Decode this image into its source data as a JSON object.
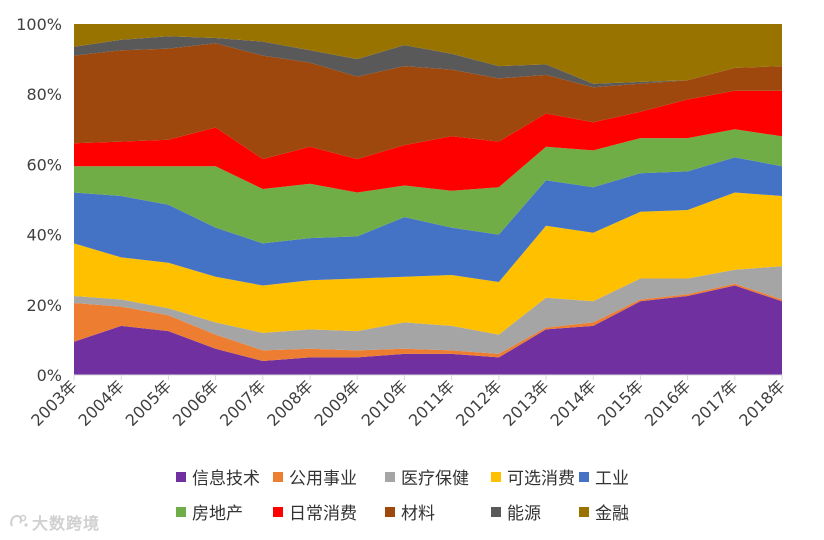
{
  "chart_data": {
    "type": "area",
    "stacked": true,
    "percent": true,
    "categories": [
      "2003年",
      "2004年",
      "2005年",
      "2006年",
      "2007年",
      "2008年",
      "2009年",
      "2010年",
      "2011年",
      "2012年",
      "2013年",
      "2014年",
      "2015年",
      "2016年",
      "2017年",
      "2018年"
    ],
    "series": [
      {
        "name": "信息技术",
        "color": "#7030a0",
        "values": [
          9.5,
          14,
          12.5,
          7.5,
          4,
          5,
          5,
          6,
          6,
          5,
          13,
          14,
          21,
          22.5,
          25.5,
          21
        ]
      },
      {
        "name": "公用事业",
        "color": "#ed7d31",
        "values": [
          11,
          5.5,
          4.5,
          4,
          3,
          2.5,
          2,
          1.5,
          1,
          1,
          0.5,
          1,
          0.5,
          0.5,
          0.5,
          0.5
        ]
      },
      {
        "name": "医疗保健",
        "color": "#a5a5a5",
        "values": [
          2,
          2,
          2,
          3.5,
          5,
          5.5,
          5.5,
          7.5,
          7,
          5.5,
          8.5,
          6,
          6,
          4.5,
          4,
          9.5
        ]
      },
      {
        "name": "可选消费",
        "color": "#ffc000",
        "values": [
          15,
          12,
          13,
          13,
          13.5,
          14,
          15,
          13,
          14.5,
          15,
          20.5,
          19.5,
          19,
          19.5,
          22,
          20
        ]
      },
      {
        "name": "工业",
        "color": "#4472c4",
        "values": [
          14.5,
          17.5,
          16.5,
          14,
          12,
          12,
          12,
          17,
          13.5,
          13.5,
          13,
          13,
          11,
          11,
          10,
          8.5
        ]
      },
      {
        "name": "房地产",
        "color": "#70ad47",
        "values": [
          7.5,
          8.5,
          11,
          17.5,
          15.5,
          15.5,
          12.5,
          9,
          10.5,
          13.5,
          9.5,
          10.5,
          10,
          9.5,
          8,
          8.5
        ]
      },
      {
        "name": "日常消费",
        "color": "#ff0000",
        "values": [
          6.5,
          7,
          7.5,
          11,
          8.5,
          10.5,
          9.5,
          11.5,
          15.5,
          13,
          9.5,
          8,
          7.5,
          11,
          11,
          13
        ]
      },
      {
        "name": "材料",
        "color": "#9e480e",
        "values": [
          25,
          26,
          26,
          24,
          29.5,
          24,
          23.5,
          22.5,
          19,
          18,
          11,
          10,
          8,
          5.5,
          6.5,
          7
        ]
      },
      {
        "name": "能源",
        "color": "#595959",
        "values": [
          2.5,
          3,
          3.5,
          1.5,
          4,
          3.5,
          5,
          6,
          4.5,
          3.5,
          3,
          1,
          0.5,
          0,
          0,
          0
        ]
      },
      {
        "name": "金融",
        "color": "#997300",
        "values": [
          6.5,
          4.5,
          3.5,
          4,
          5,
          7.5,
          10,
          6,
          8.5,
          12,
          11.5,
          17,
          16.5,
          16,
          12.5,
          12
        ]
      }
    ],
    "y_ticks": [
      "0%",
      "20%",
      "40%",
      "60%",
      "80%",
      "100%"
    ],
    "ylim": [
      0,
      100
    ],
    "legend_position": "bottom",
    "title": "",
    "xlabel": "",
    "ylabel": ""
  },
  "watermark": {
    "text": "大数跨境",
    "icon": "logo-icon"
  }
}
